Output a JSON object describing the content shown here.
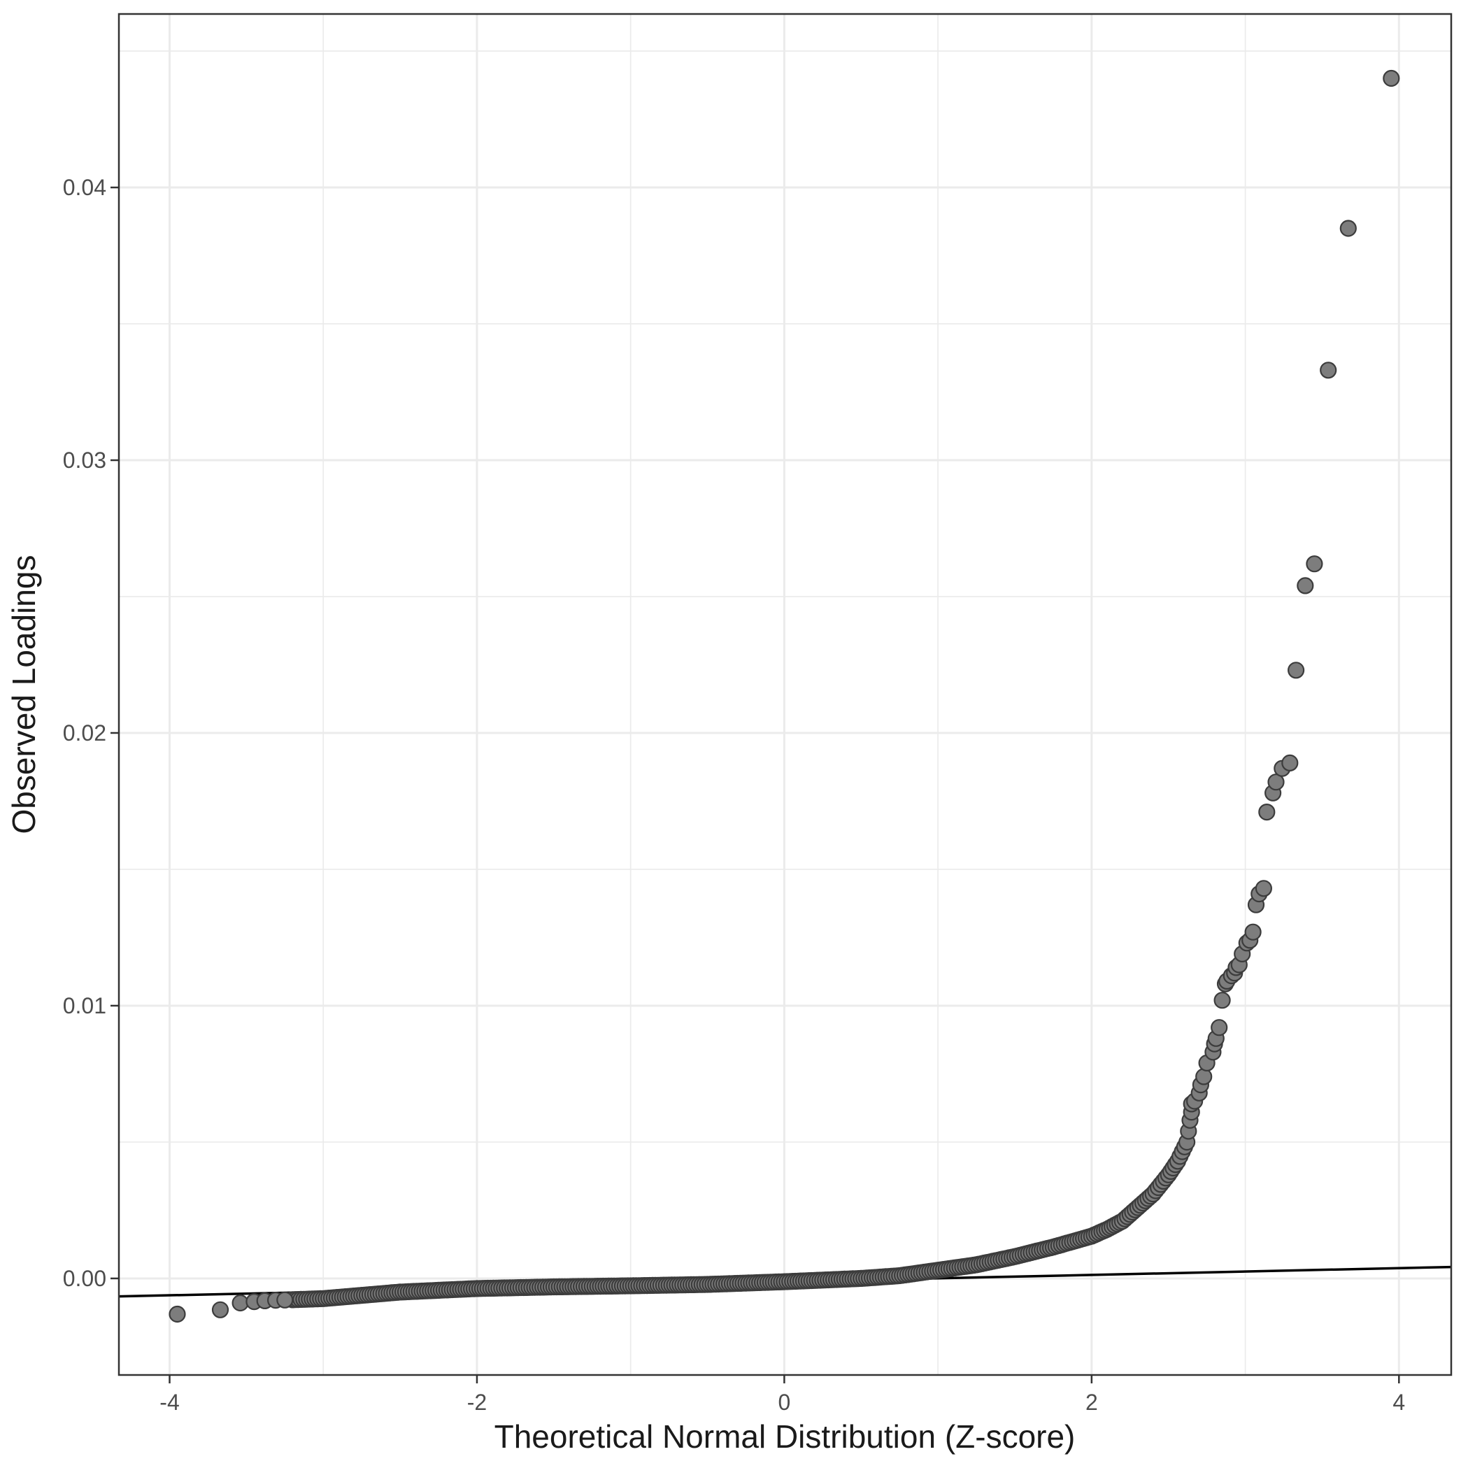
{
  "page": {
    "background_color": "#ffffff",
    "description": "ggplot2-style Q-Q scatter plot, no title, no legend"
  },
  "style": {
    "panel_background": "#ffffff",
    "panel_border_color": "#333333",
    "grid_major_color": "#ebebeb",
    "grid_minor_color": "#ebebeb",
    "tick_color": "#333333",
    "tick_label_color": "#4d4d4d",
    "axis_title_color": "#1a1a1a",
    "point_fill": "#7d7d7d",
    "point_stroke": "#3c3c3c",
    "ref_line_color": "#000000"
  },
  "chart_data": {
    "type": "scatter",
    "subtype": "qq-plot",
    "title": "",
    "xlabel": "Theoretical Normal Distribution (Z-score)",
    "ylabel": "Observed Loadings",
    "legend": "none",
    "grid": "major+minor",
    "xlim": [
      -4.33,
      4.34
    ],
    "ylim": [
      -0.00354,
      0.04636
    ],
    "x_ticks": {
      "values": [
        -4,
        -2,
        0,
        2,
        4
      ],
      "labels": [
        "-4",
        "-2",
        "0",
        "2",
        "4"
      ]
    },
    "x_minor_ticks": [
      -3,
      -1,
      1,
      3
    ],
    "y_ticks": {
      "values": [
        0,
        0.01,
        0.02,
        0.03,
        0.04
      ],
      "labels": [
        "0.00",
        "0.01",
        "0.02",
        "0.03",
        "0.04"
      ]
    },
    "y_minor_ticks": [
      0.005,
      0.015,
      0.025,
      0.035,
      0.045
    ],
    "ref_line": {
      "x1": -4.33,
      "y1": -0.00066,
      "x2": 4.34,
      "y2": 0.00042
    },
    "discrete_points": [
      [
        -3.95,
        -0.00131
      ],
      [
        -3.67,
        -0.00115
      ],
      [
        -3.54,
        -0.0009
      ],
      [
        -3.45,
        -0.00085
      ],
      [
        -3.38,
        -0.00082
      ],
      [
        -3.31,
        -0.0008
      ],
      [
        -3.25,
        -0.00079
      ],
      [
        2.63,
        0.0054
      ],
      [
        2.64,
        0.0058
      ],
      [
        2.65,
        0.0061
      ],
      [
        2.65,
        0.0064
      ],
      [
        2.67,
        0.0065
      ],
      [
        2.7,
        0.0068
      ],
      [
        2.71,
        0.0071
      ],
      [
        2.73,
        0.0074
      ],
      [
        2.75,
        0.0079
      ],
      [
        2.79,
        0.0083
      ],
      [
        2.8,
        0.0086
      ],
      [
        2.81,
        0.0088
      ],
      [
        2.83,
        0.0092
      ],
      [
        2.85,
        0.0102
      ],
      [
        2.87,
        0.0108
      ],
      [
        2.88,
        0.0109
      ],
      [
        2.91,
        0.0111
      ],
      [
        2.93,
        0.0112
      ],
      [
        2.94,
        0.0114
      ],
      [
        2.96,
        0.0115
      ],
      [
        2.98,
        0.0119
      ],
      [
        3.01,
        0.0123
      ],
      [
        3.03,
        0.0124
      ],
      [
        3.05,
        0.0127
      ],
      [
        3.07,
        0.0137
      ],
      [
        3.09,
        0.0141
      ],
      [
        3.12,
        0.0143
      ],
      [
        3.14,
        0.0171
      ],
      [
        3.18,
        0.0178
      ],
      [
        3.2,
        0.0182
      ],
      [
        3.24,
        0.0187
      ],
      [
        3.29,
        0.0189
      ],
      [
        3.33,
        0.0223
      ],
      [
        3.39,
        0.0254
      ],
      [
        3.45,
        0.0262
      ],
      [
        3.54,
        0.0333
      ],
      [
        3.67,
        0.0385
      ],
      [
        3.95,
        0.044
      ]
    ],
    "dense_band_centerline": [
      [
        -3.2,
        -0.00078
      ],
      [
        -3.0,
        -0.00074
      ],
      [
        -2.5,
        -0.0005
      ],
      [
        -2.0,
        -0.00037
      ],
      [
        -1.5,
        -0.00031
      ],
      [
        -1.0,
        -0.00027
      ],
      [
        -0.5,
        -0.00022
      ],
      [
        0.0,
        -0.00012
      ],
      [
        0.5,
        0.0
      ],
      [
        0.75,
        0.0001
      ],
      [
        1.0,
        0.0003
      ],
      [
        1.25,
        0.0005
      ],
      [
        1.5,
        0.0008
      ],
      [
        1.75,
        0.00115
      ],
      [
        2.0,
        0.00155
      ],
      [
        2.1,
        0.0018
      ],
      [
        2.2,
        0.0021
      ],
      [
        2.3,
        0.0026
      ],
      [
        2.4,
        0.0031
      ],
      [
        2.5,
        0.0038
      ],
      [
        2.56,
        0.0043
      ],
      [
        2.62,
        0.005
      ]
    ],
    "dense_band_note": "Several hundred overlapping points form a solid band along this centerline; individual values are not resolvable in the image.",
    "point_radius_px": 11
  }
}
